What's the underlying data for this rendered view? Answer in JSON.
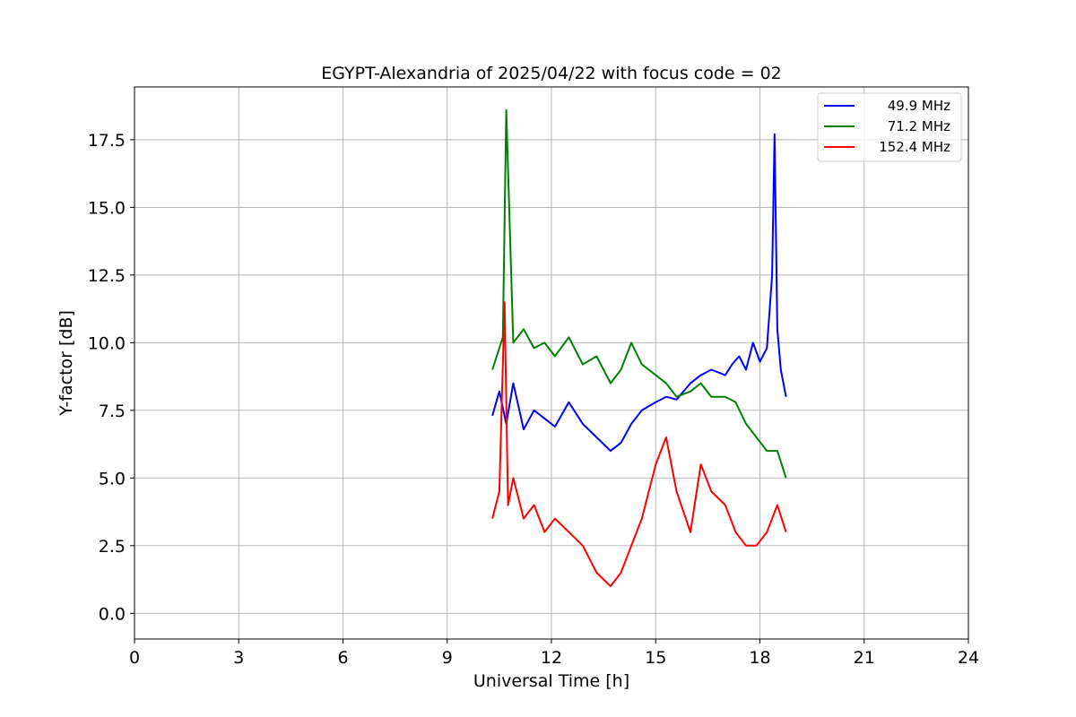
{
  "chart_data": {
    "type": "line",
    "title": "EGYPT-Alexandria of 2025/04/22 with focus code = 02",
    "xlabel": "Universal Time [h]",
    "ylabel": "Y-factor [dB]",
    "xlim": [
      0,
      24
    ],
    "ylim": [
      -0.95,
      19.45
    ],
    "x_ticks": [
      0,
      3,
      6,
      9,
      12,
      15,
      18,
      21,
      24
    ],
    "x_tick_labels": [
      "0",
      "3",
      "6",
      "9",
      "12",
      "15",
      "18",
      "21",
      "24"
    ],
    "y_ticks": [
      0,
      2.5,
      5,
      7.5,
      10,
      12.5,
      15,
      17.5
    ],
    "y_tick_labels": [
      "0.0",
      "2.5",
      "5.0",
      "7.5",
      "10.0",
      "12.5",
      "15.0",
      "17.5"
    ],
    "grid": true,
    "legend_position": "top-right",
    "series": [
      {
        "name": "49.9 MHz",
        "color": "#0000ff",
        "x": [
          10.3,
          10.5,
          10.7,
          10.9,
          11.2,
          11.5,
          11.8,
          12.1,
          12.5,
          12.9,
          13.3,
          13.7,
          14.0,
          14.3,
          14.6,
          15.0,
          15.3,
          15.6,
          16.0,
          16.3,
          16.6,
          17.0,
          17.2,
          17.4,
          17.6,
          17.8,
          18.0,
          18.2,
          18.35,
          18.42,
          18.5,
          18.6,
          18.75
        ],
        "y": [
          7.3,
          8.2,
          7.0,
          8.5,
          6.8,
          7.5,
          7.2,
          6.9,
          7.8,
          7.0,
          6.5,
          6.0,
          6.3,
          7.0,
          7.5,
          7.8,
          8.0,
          7.9,
          8.5,
          8.8,
          9.0,
          8.8,
          9.2,
          9.5,
          9.0,
          10.0,
          9.3,
          9.8,
          12.5,
          17.7,
          10.5,
          9.0,
          8.0
        ]
      },
      {
        "name": "71.2 MHz",
        "color": "#008000",
        "x": [
          10.3,
          10.5,
          10.6,
          10.7,
          10.9,
          11.2,
          11.5,
          11.8,
          12.1,
          12.5,
          12.9,
          13.3,
          13.7,
          14.0,
          14.3,
          14.6,
          15.0,
          15.3,
          15.6,
          16.0,
          16.3,
          16.6,
          17.0,
          17.3,
          17.6,
          17.9,
          18.2,
          18.5,
          18.75
        ],
        "y": [
          9.0,
          9.8,
          10.2,
          18.6,
          10.0,
          10.5,
          9.8,
          10.0,
          9.5,
          10.2,
          9.2,
          9.5,
          8.5,
          9.0,
          10.0,
          9.2,
          8.8,
          8.5,
          8.0,
          8.2,
          8.5,
          8.0,
          8.0,
          7.8,
          7.0,
          6.5,
          6.0,
          6.0,
          5.0
        ]
      },
      {
        "name": "152.4 MHz",
        "color": "#ff0000",
        "x": [
          10.3,
          10.5,
          10.65,
          10.75,
          10.9,
          11.2,
          11.5,
          11.8,
          12.1,
          12.5,
          12.9,
          13.3,
          13.7,
          14.0,
          14.3,
          14.6,
          15.0,
          15.3,
          15.6,
          16.0,
          16.3,
          16.6,
          17.0,
          17.3,
          17.6,
          17.9,
          18.2,
          18.5,
          18.75
        ],
        "y": [
          3.5,
          4.5,
          11.5,
          4.0,
          5.0,
          3.5,
          4.0,
          3.0,
          3.5,
          3.0,
          2.5,
          1.5,
          1.0,
          1.5,
          2.5,
          3.5,
          5.5,
          6.5,
          4.5,
          3.0,
          5.5,
          4.5,
          4.0,
          3.0,
          2.5,
          2.5,
          3.0,
          4.0,
          3.0
        ]
      }
    ]
  }
}
